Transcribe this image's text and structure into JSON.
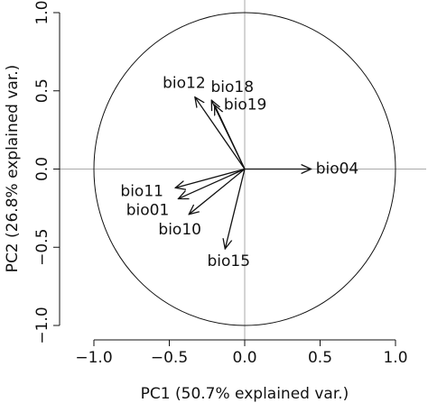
{
  "chart_data": {
    "type": "biplot",
    "xlabel": "PC1 (50.7% explained var.)",
    "ylabel": "PC2 (26.8% explained var.)",
    "xlim": [
      -1,
      1
    ],
    "ylim": [
      -1,
      1
    ],
    "xticks": [
      {
        "value": -1,
        "label": "−1.0"
      },
      {
        "value": -0.5,
        "label": "−0.5"
      },
      {
        "value": 0,
        "label": "0.0"
      },
      {
        "value": 0.5,
        "label": "0.5"
      },
      {
        "value": 1,
        "label": "1.0"
      }
    ],
    "yticks": [
      {
        "value": -1,
        "label": "−1.0"
      },
      {
        "value": -0.5,
        "label": "−0.5"
      },
      {
        "value": 0,
        "label": "0.0"
      },
      {
        "value": 0.5,
        "label": "0.5"
      },
      {
        "value": 1,
        "label": "1.0"
      }
    ],
    "categories": [
      "bio12",
      "bio18",
      "bio19",
      "bio04",
      "bio11",
      "bio01",
      "bio10",
      "bio15"
    ],
    "x": [
      -0.33,
      -0.22,
      -0.2,
      0.44,
      -0.46,
      -0.44,
      -0.37,
      -0.13
    ],
    "values": [
      0.46,
      0.44,
      0.41,
      0.0,
      -0.12,
      -0.19,
      -0.29,
      -0.51
    ],
    "color": "#111111"
  }
}
